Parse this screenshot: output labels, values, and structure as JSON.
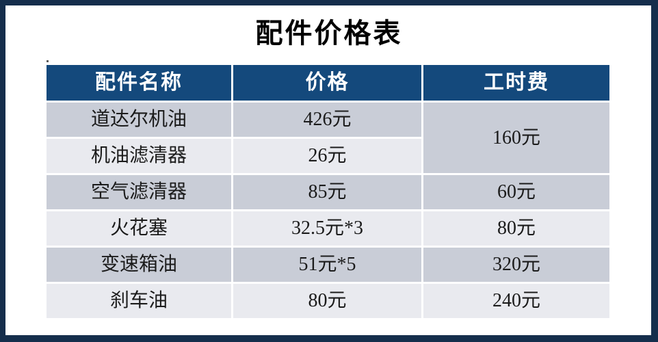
{
  "title": "配件价格表",
  "table": {
    "headers": [
      "配件名称",
      "价格",
      "工时费"
    ],
    "rows": [
      {
        "name": "道达尔机油",
        "price": "426元",
        "labor": "160元"
      },
      {
        "name": "机油滤清器",
        "price": "26元"
      },
      {
        "name": "空气滤清器",
        "price": "85元",
        "labor": "60元"
      },
      {
        "name": "火花塞",
        "price": "32.5元*3",
        "labor": "80元"
      },
      {
        "name": "变速箱油",
        "price": "51元*5",
        "labor": "320元"
      },
      {
        "name": "刹车油",
        "price": "80元",
        "labor": "240元"
      }
    ]
  },
  "colors": {
    "frame_border": "#152e4c",
    "header_bg": "#14497c",
    "header_text": "#ffffff",
    "row_band_dark": "#c9cdd7",
    "row_band_light": "#e9eaef",
    "cell_text": "#1b1b1b",
    "title_text": "#000000"
  }
}
